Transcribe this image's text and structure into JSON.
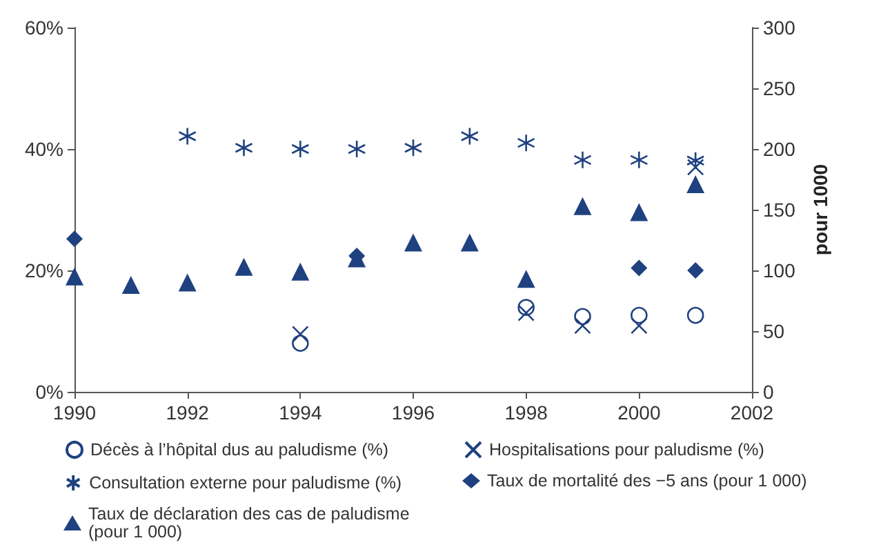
{
  "chart_data": {
    "type": "scatter",
    "xlim": [
      1990,
      2002
    ],
    "xticks": [
      1990,
      1992,
      1994,
      1996,
      1998,
      2000,
      2002
    ],
    "ylim": [
      0,
      60
    ],
    "yticks": [
      {
        "value": 0,
        "label": "0%"
      },
      {
        "value": 20,
        "label": "20%"
      },
      {
        "value": 40,
        "label": "40%"
      },
      {
        "value": 60,
        "label": "60%"
      }
    ],
    "y2lim": [
      0,
      300
    ],
    "y2ticks": [
      0,
      50,
      100,
      150,
      200,
      250,
      300
    ],
    "y2label": "pour 1000",
    "grid": false,
    "legend": "bottom",
    "series": [
      {
        "name": "Décès à l’hôpital dus au paludisme (%)",
        "color": "#1f4180",
        "marker": "circle",
        "x": [
          1994,
          1998,
          1999,
          2000,
          2001
        ],
        "values": [
          8,
          13.9,
          12.4,
          12.6,
          12.6
        ]
      },
      {
        "name": "Hospitalisations pour paludisme (%)",
        "color": "#1f4180",
        "marker": "cross",
        "x": [
          1994,
          1998,
          1999,
          2000,
          2001
        ],
        "values": [
          9.5,
          13,
          10.9,
          10.9,
          37
        ]
      },
      {
        "name": "Consultation externe pour paludisme (%)",
        "color": "#1f4180",
        "x": [
          1992,
          1993,
          1994,
          1995,
          1996,
          1997,
          1998,
          1999,
          2000,
          2001
        ],
        "values": [
          42.1,
          40.2,
          40,
          40,
          40.2,
          42.1,
          41,
          38.2,
          38.2,
          38.1
        ]
      },
      {
        "name": "Taux de mortalité des −5 ans (pour 1 000)",
        "color": "#1f4180",
        "marker": "diamond",
        "axis": "y2",
        "x": [
          1990,
          1995,
          2000,
          2001
        ],
        "values": [
          126,
          112,
          102,
          100
        ]
      },
      {
        "name": "Taux de déclaration des cas de paludisme (pour 1 000)",
        "color": "#1f4180",
        "marker": "triangle",
        "axis": "y2",
        "x": [
          1990,
          1991,
          1992,
          1993,
          1994,
          1995,
          1996,
          1997,
          1998,
          1999,
          2000,
          2001
        ],
        "values": [
          95,
          88,
          90,
          103,
          99,
          110,
          123,
          123,
          93,
          153,
          148,
          171
        ]
      }
    ]
  }
}
